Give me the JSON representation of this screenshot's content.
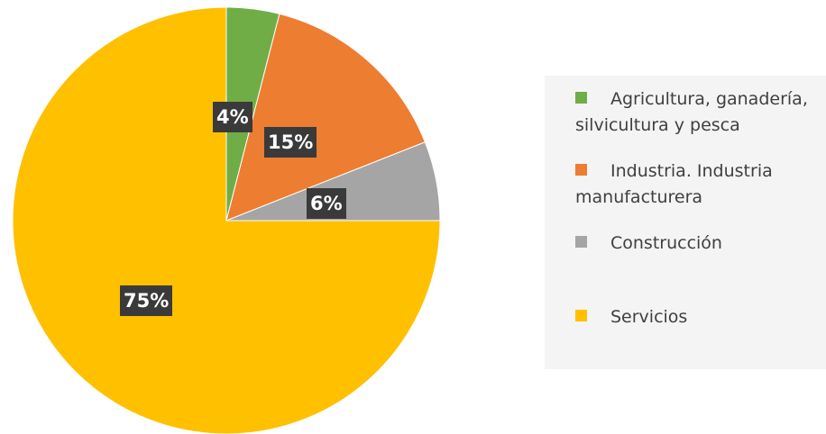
{
  "chart_data": {
    "type": "pie",
    "start_angle_deg": 90,
    "direction": "clockwise",
    "slices": [
      {
        "label": "Agricultura, ganadería, silvicultura y pesca",
        "label_lines": [
          "Agricultura, ganadería,",
          "silvicultura y pesca"
        ],
        "value": 4,
        "value_label": "4%",
        "color": "#70ad47"
      },
      {
        "label": "Industria. Industria manufacturera",
        "label_lines": [
          "Industria. Industria",
          "manufacturera"
        ],
        "value": 15,
        "value_label": "15%",
        "color": "#ed7d31"
      },
      {
        "label": "Construcción",
        "label_lines": [
          "Construcción"
        ],
        "value": 6,
        "value_label": "6%",
        "color": "#a5a5a5"
      },
      {
        "label": "Servicios",
        "label_lines": [
          "Servicios"
        ],
        "value": 75,
        "value_label": "75%",
        "color": "#ffc000"
      }
    ],
    "legend_position": "right"
  }
}
